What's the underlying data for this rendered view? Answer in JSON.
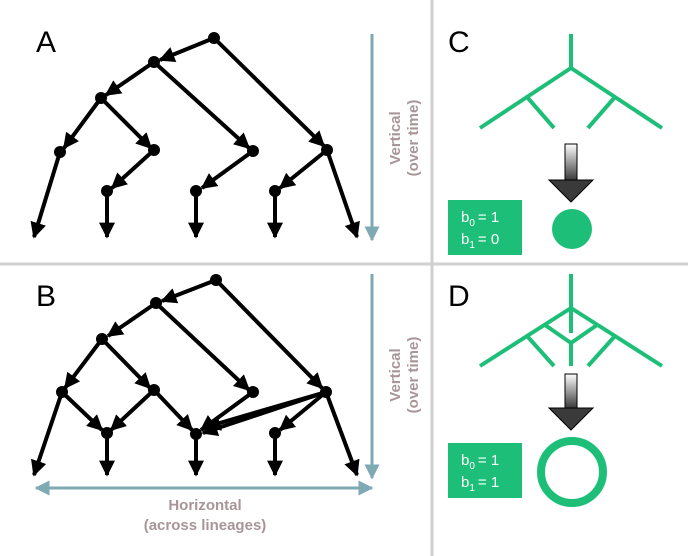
{
  "panels": {
    "a": {
      "letter": "A",
      "vertical_label": "Vertical",
      "vertical_sub": "(over time)"
    },
    "b": {
      "letter": "B",
      "vertical_label": "Vertical",
      "vertical_sub": "(over time)",
      "horizontal_label": "Horizontal",
      "horizontal_sub": "(across lineages)"
    },
    "c": {
      "letter": "C",
      "b0": {
        "name": "b",
        "sub": "0",
        "value": "= 1"
      },
      "b1": {
        "name": "b",
        "sub": "1",
        "value": "= 0"
      },
      "shape": "filled-disc"
    },
    "d": {
      "letter": "D",
      "b0": {
        "name": "b",
        "sub": "0",
        "value": "= 1"
      },
      "b1": {
        "name": "b",
        "sub": "1",
        "value": "= 1"
      },
      "shape": "ring"
    }
  },
  "colors": {
    "tree": "#000000",
    "axis_arrow": "#7faab4",
    "axis_text": "#a89598",
    "green": "#1dbf78",
    "divider": "#cfcfcf"
  }
}
